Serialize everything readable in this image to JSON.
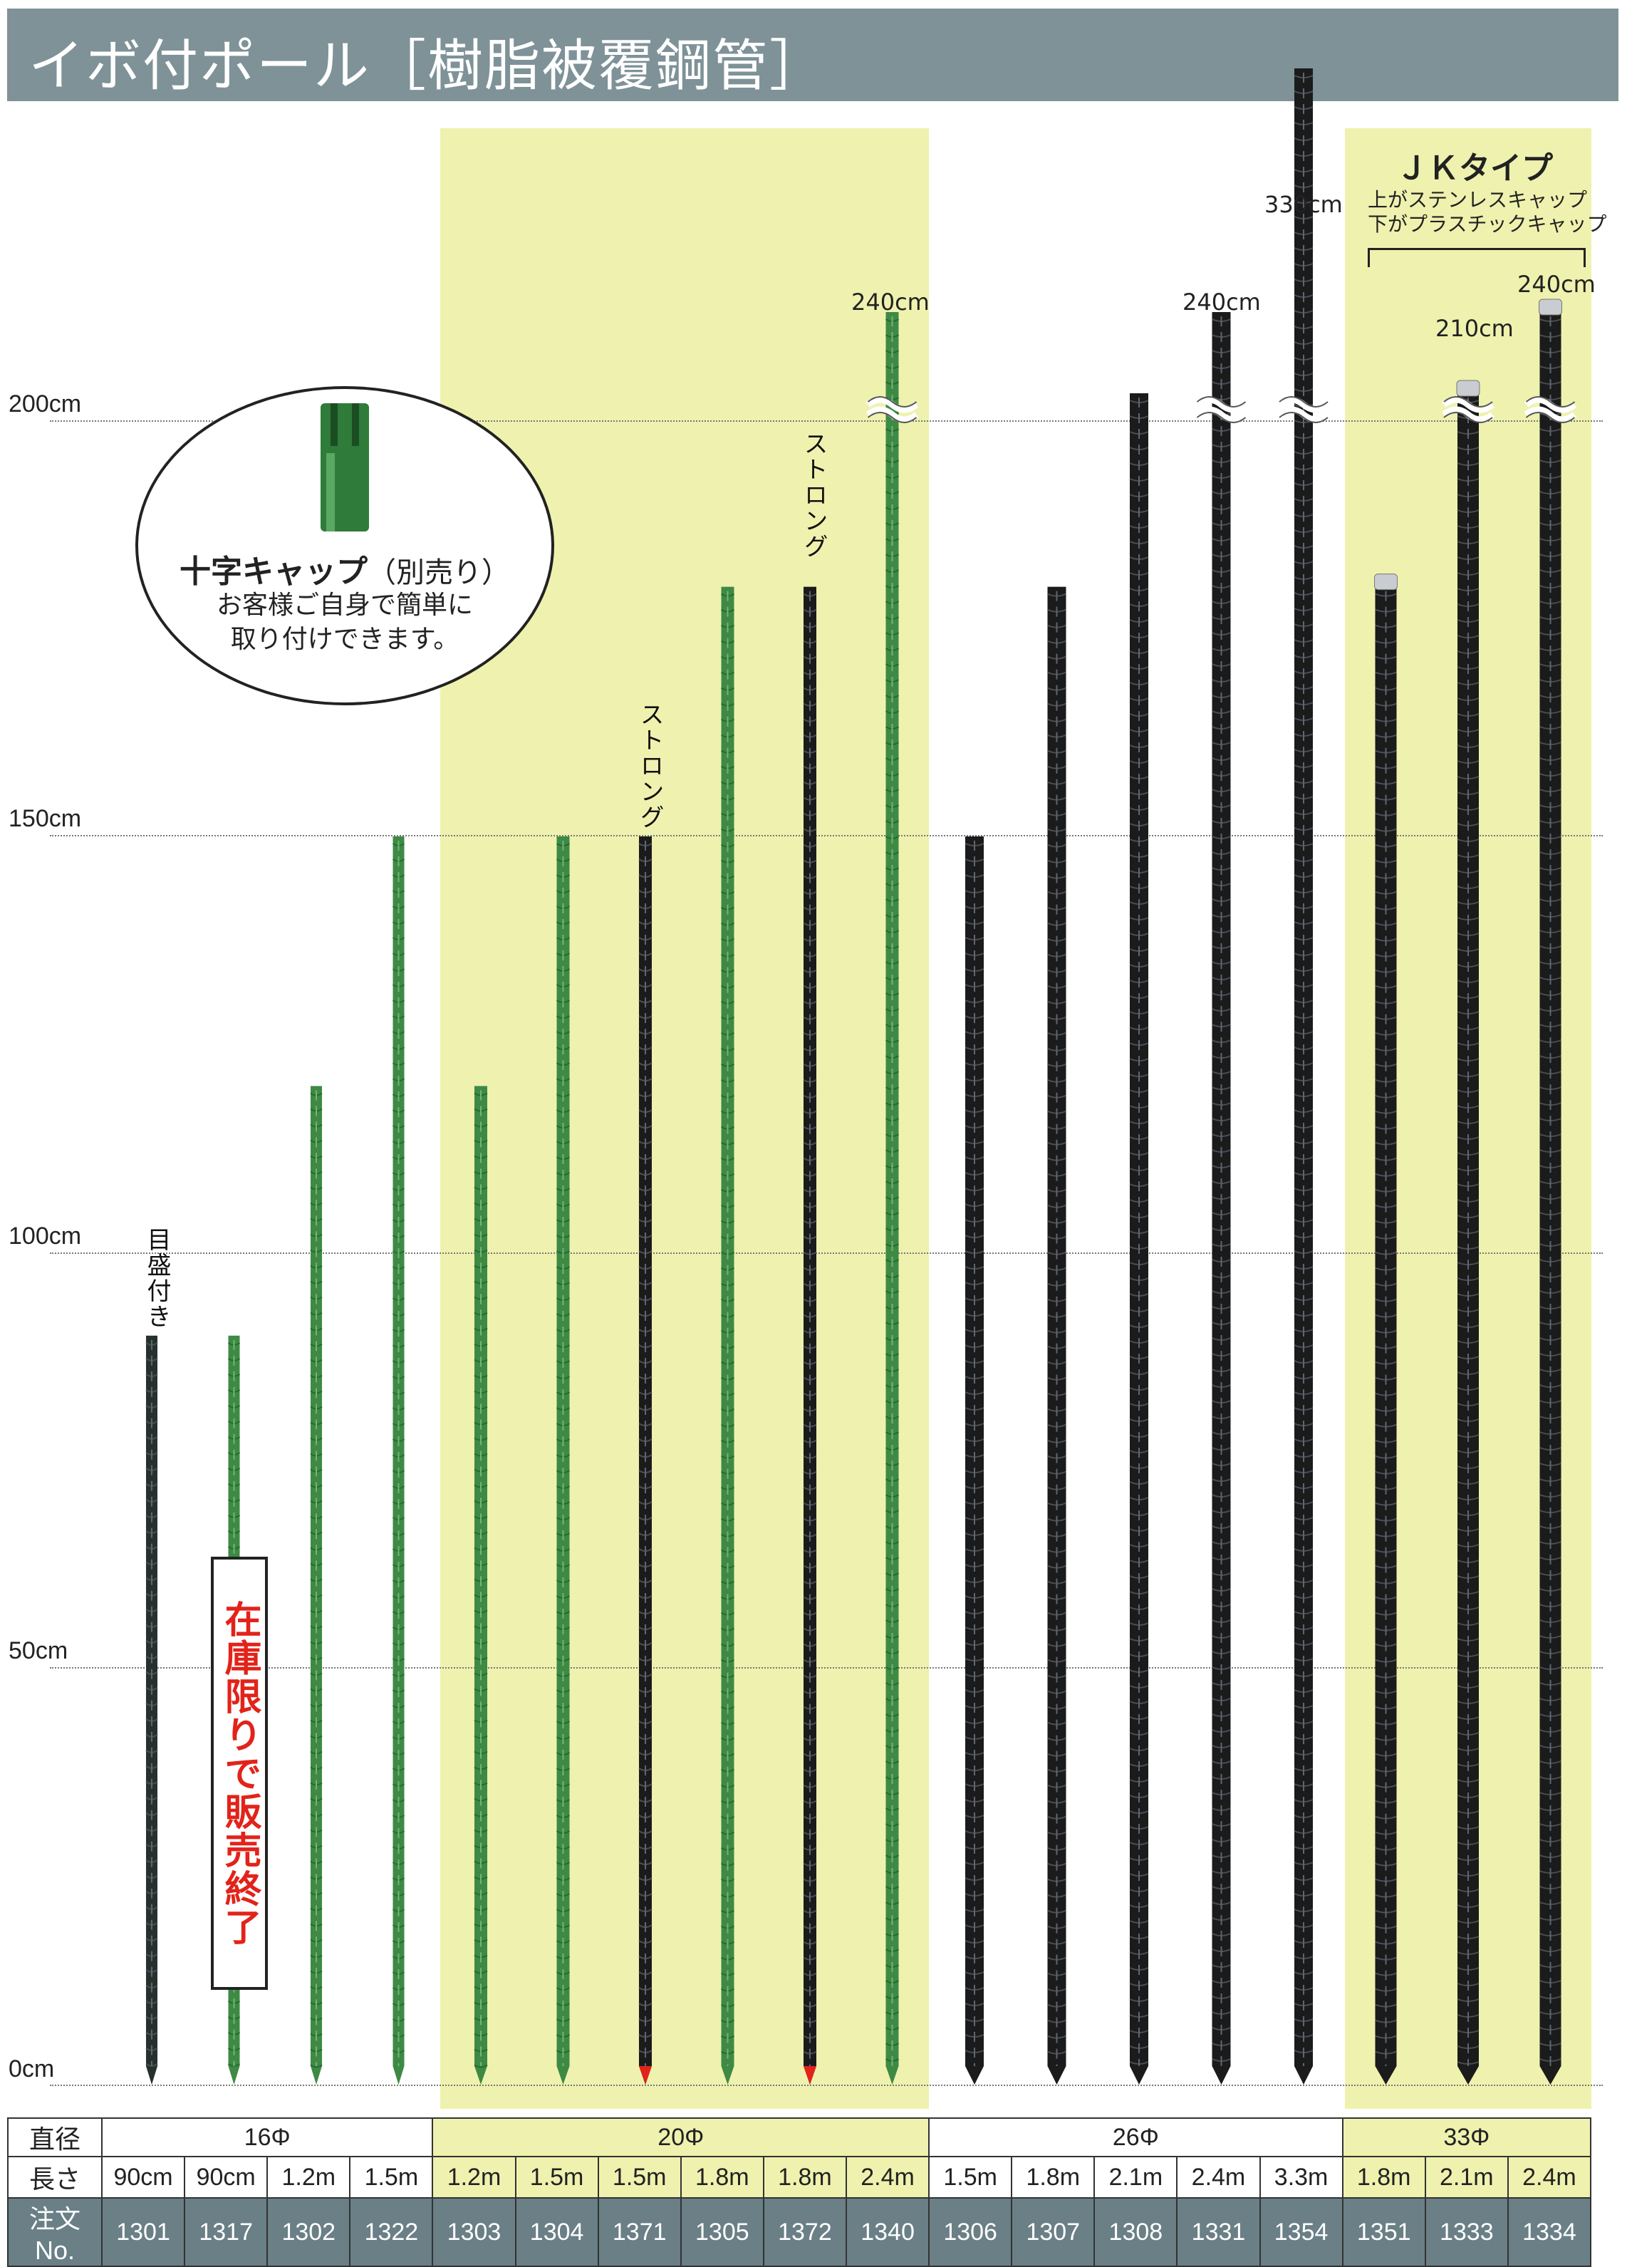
{
  "title": "イボ付ポール［樹脂被覆鋼管］",
  "axis": {
    "labels": [
      {
        "text": "200cm",
        "cm": 200
      },
      {
        "text": "150cm",
        "cm": 150
      },
      {
        "text": "100cm",
        "cm": 100
      },
      {
        "text": "50cm",
        "cm": 50
      },
      {
        "text": "0cm",
        "cm": 0
      }
    ]
  },
  "cap_callout": {
    "title": "十字キャップ",
    "title_suffix": "（別売り）",
    "desc_line1": "お客様ご自身で簡単に",
    "desc_line2": "取り付けできます。"
  },
  "labels": {
    "graduated": "目盛付き",
    "sold_out": "在庫限りで販売終了",
    "strong_1": "ストロング",
    "strong_2": "ストロング",
    "len_240_green": "240cm",
    "len_240_black": "240cm",
    "len_330": "330cm",
    "len_210_jk": "210cm",
    "len_240_jk": "240cm"
  },
  "jk": {
    "title": "ＪＫタイプ",
    "desc_line1": "上がステンレスキャップ",
    "desc_line2": "下がプラスチックキャップ"
  },
  "colors": {
    "green": "#3e8a44",
    "black": "#1b1b1b",
    "highlight": "#eef2ae",
    "header": "#7e9298",
    "red_tip": "#e2231a"
  },
  "poles": [
    {
      "length_cm": 90,
      "color": "graduated",
      "diameter": 16
    },
    {
      "length_cm": 90,
      "color": "green",
      "diameter": 16
    },
    {
      "length_cm": 120,
      "color": "green",
      "diameter": 16
    },
    {
      "length_cm": 150,
      "color": "green",
      "diameter": 16
    },
    {
      "length_cm": 120,
      "color": "green",
      "diameter": 20
    },
    {
      "length_cm": 150,
      "color": "green",
      "diameter": 20
    },
    {
      "length_cm": 150,
      "color": "black",
      "diameter": 20,
      "red_tip": true
    },
    {
      "length_cm": 180,
      "color": "green",
      "diameter": 20
    },
    {
      "length_cm": 180,
      "color": "black",
      "diameter": 20,
      "red_tip": true
    },
    {
      "length_cm": 240,
      "color": "green",
      "diameter": 20,
      "break": true
    },
    {
      "length_cm": 150,
      "color": "black",
      "diameter": 26
    },
    {
      "length_cm": 180,
      "color": "black",
      "diameter": 26
    },
    {
      "length_cm": 210,
      "color": "black",
      "diameter": 26
    },
    {
      "length_cm": 240,
      "color": "black",
      "diameter": 26,
      "break": true
    },
    {
      "length_cm": 330,
      "color": "black",
      "diameter": 26,
      "break": true
    },
    {
      "length_cm": 180,
      "color": "black",
      "diameter": 33,
      "cap": true
    },
    {
      "length_cm": 210,
      "color": "black",
      "diameter": 33,
      "cap": true,
      "break": true
    },
    {
      "length_cm": 240,
      "color": "black",
      "diameter": 33,
      "cap": true,
      "break": true
    }
  ],
  "table": {
    "row_labels": {
      "diameter": "直径",
      "length": "長さ",
      "order": "注文 No."
    },
    "diameters": [
      "16Φ",
      "20Φ",
      "26Φ",
      "33Φ"
    ],
    "lengths": [
      "90cm",
      "90cm",
      "1.2m",
      "1.5m",
      "1.2m",
      "1.5m",
      "1.5m",
      "1.8m",
      "1.8m",
      "2.4m",
      "1.5m",
      "1.8m",
      "2.1m",
      "2.4m",
      "3.3m",
      "1.8m",
      "2.1m",
      "2.4m"
    ],
    "orders": [
      "1301",
      "1317",
      "1302",
      "1322",
      "1303",
      "1304",
      "1371",
      "1305",
      "1372",
      "1340",
      "1306",
      "1307",
      "1308",
      "1331",
      "1354",
      "1351",
      "1333",
      "1334"
    ]
  }
}
